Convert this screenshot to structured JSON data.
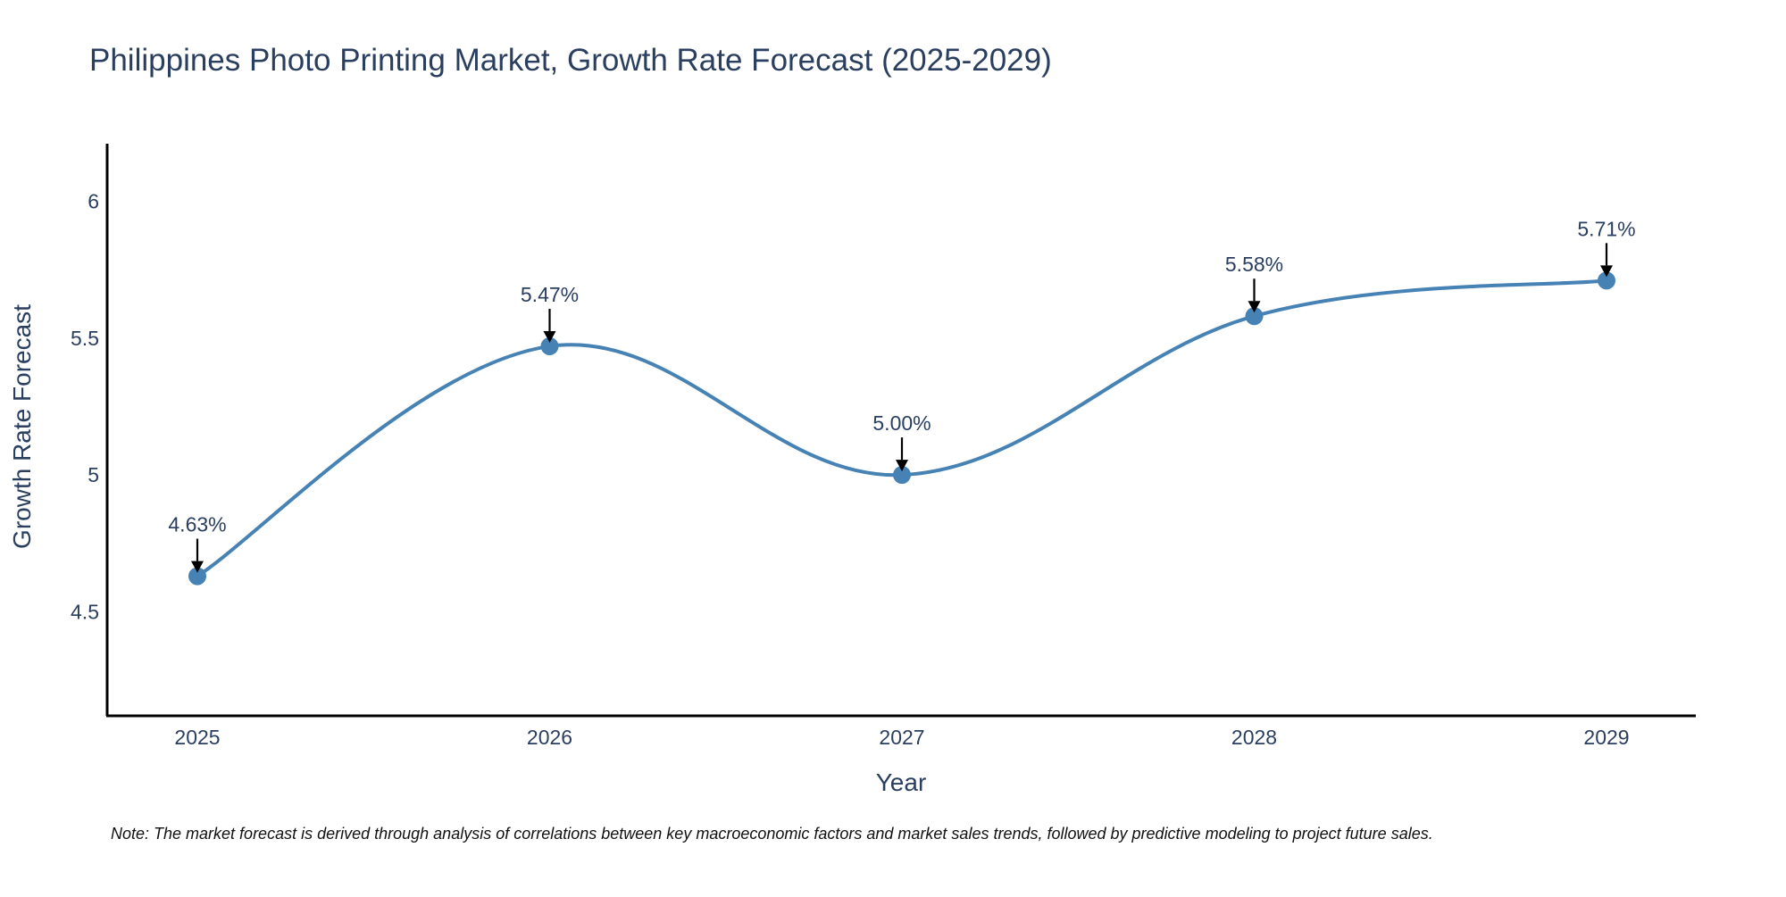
{
  "chart_data": {
    "type": "line",
    "title": "Philippines Photo Printing Market, Growth Rate Forecast (2025-2029)",
    "xlabel": "Year",
    "ylabel": "Growth Rate Forecast",
    "categories": [
      "2025",
      "2026",
      "2027",
      "2028",
      "2029"
    ],
    "series": [
      {
        "name": "Growth Rate Forecast",
        "values": [
          4.63,
          5.47,
          5.0,
          5.58,
          5.71
        ],
        "labels": [
          "4.63%",
          "5.47%",
          "5.00%",
          "5.58%",
          "5.71%"
        ],
        "color": "#4682b4"
      }
    ],
    "ylim": [
      4.12,
      6.21
    ],
    "yticks": [
      4.5,
      5,
      5.5,
      6
    ],
    "ytick_labels": [
      "4.5",
      "5",
      "5.5",
      "6"
    ],
    "grid": false,
    "line_shape": "spline",
    "arrow_color": "#000000",
    "axis_color": "#000000"
  },
  "note": "Note: The market forecast is derived through analysis of correlations between key macroeconomic factors and market sales trends, followed by predictive modeling to project future sales."
}
